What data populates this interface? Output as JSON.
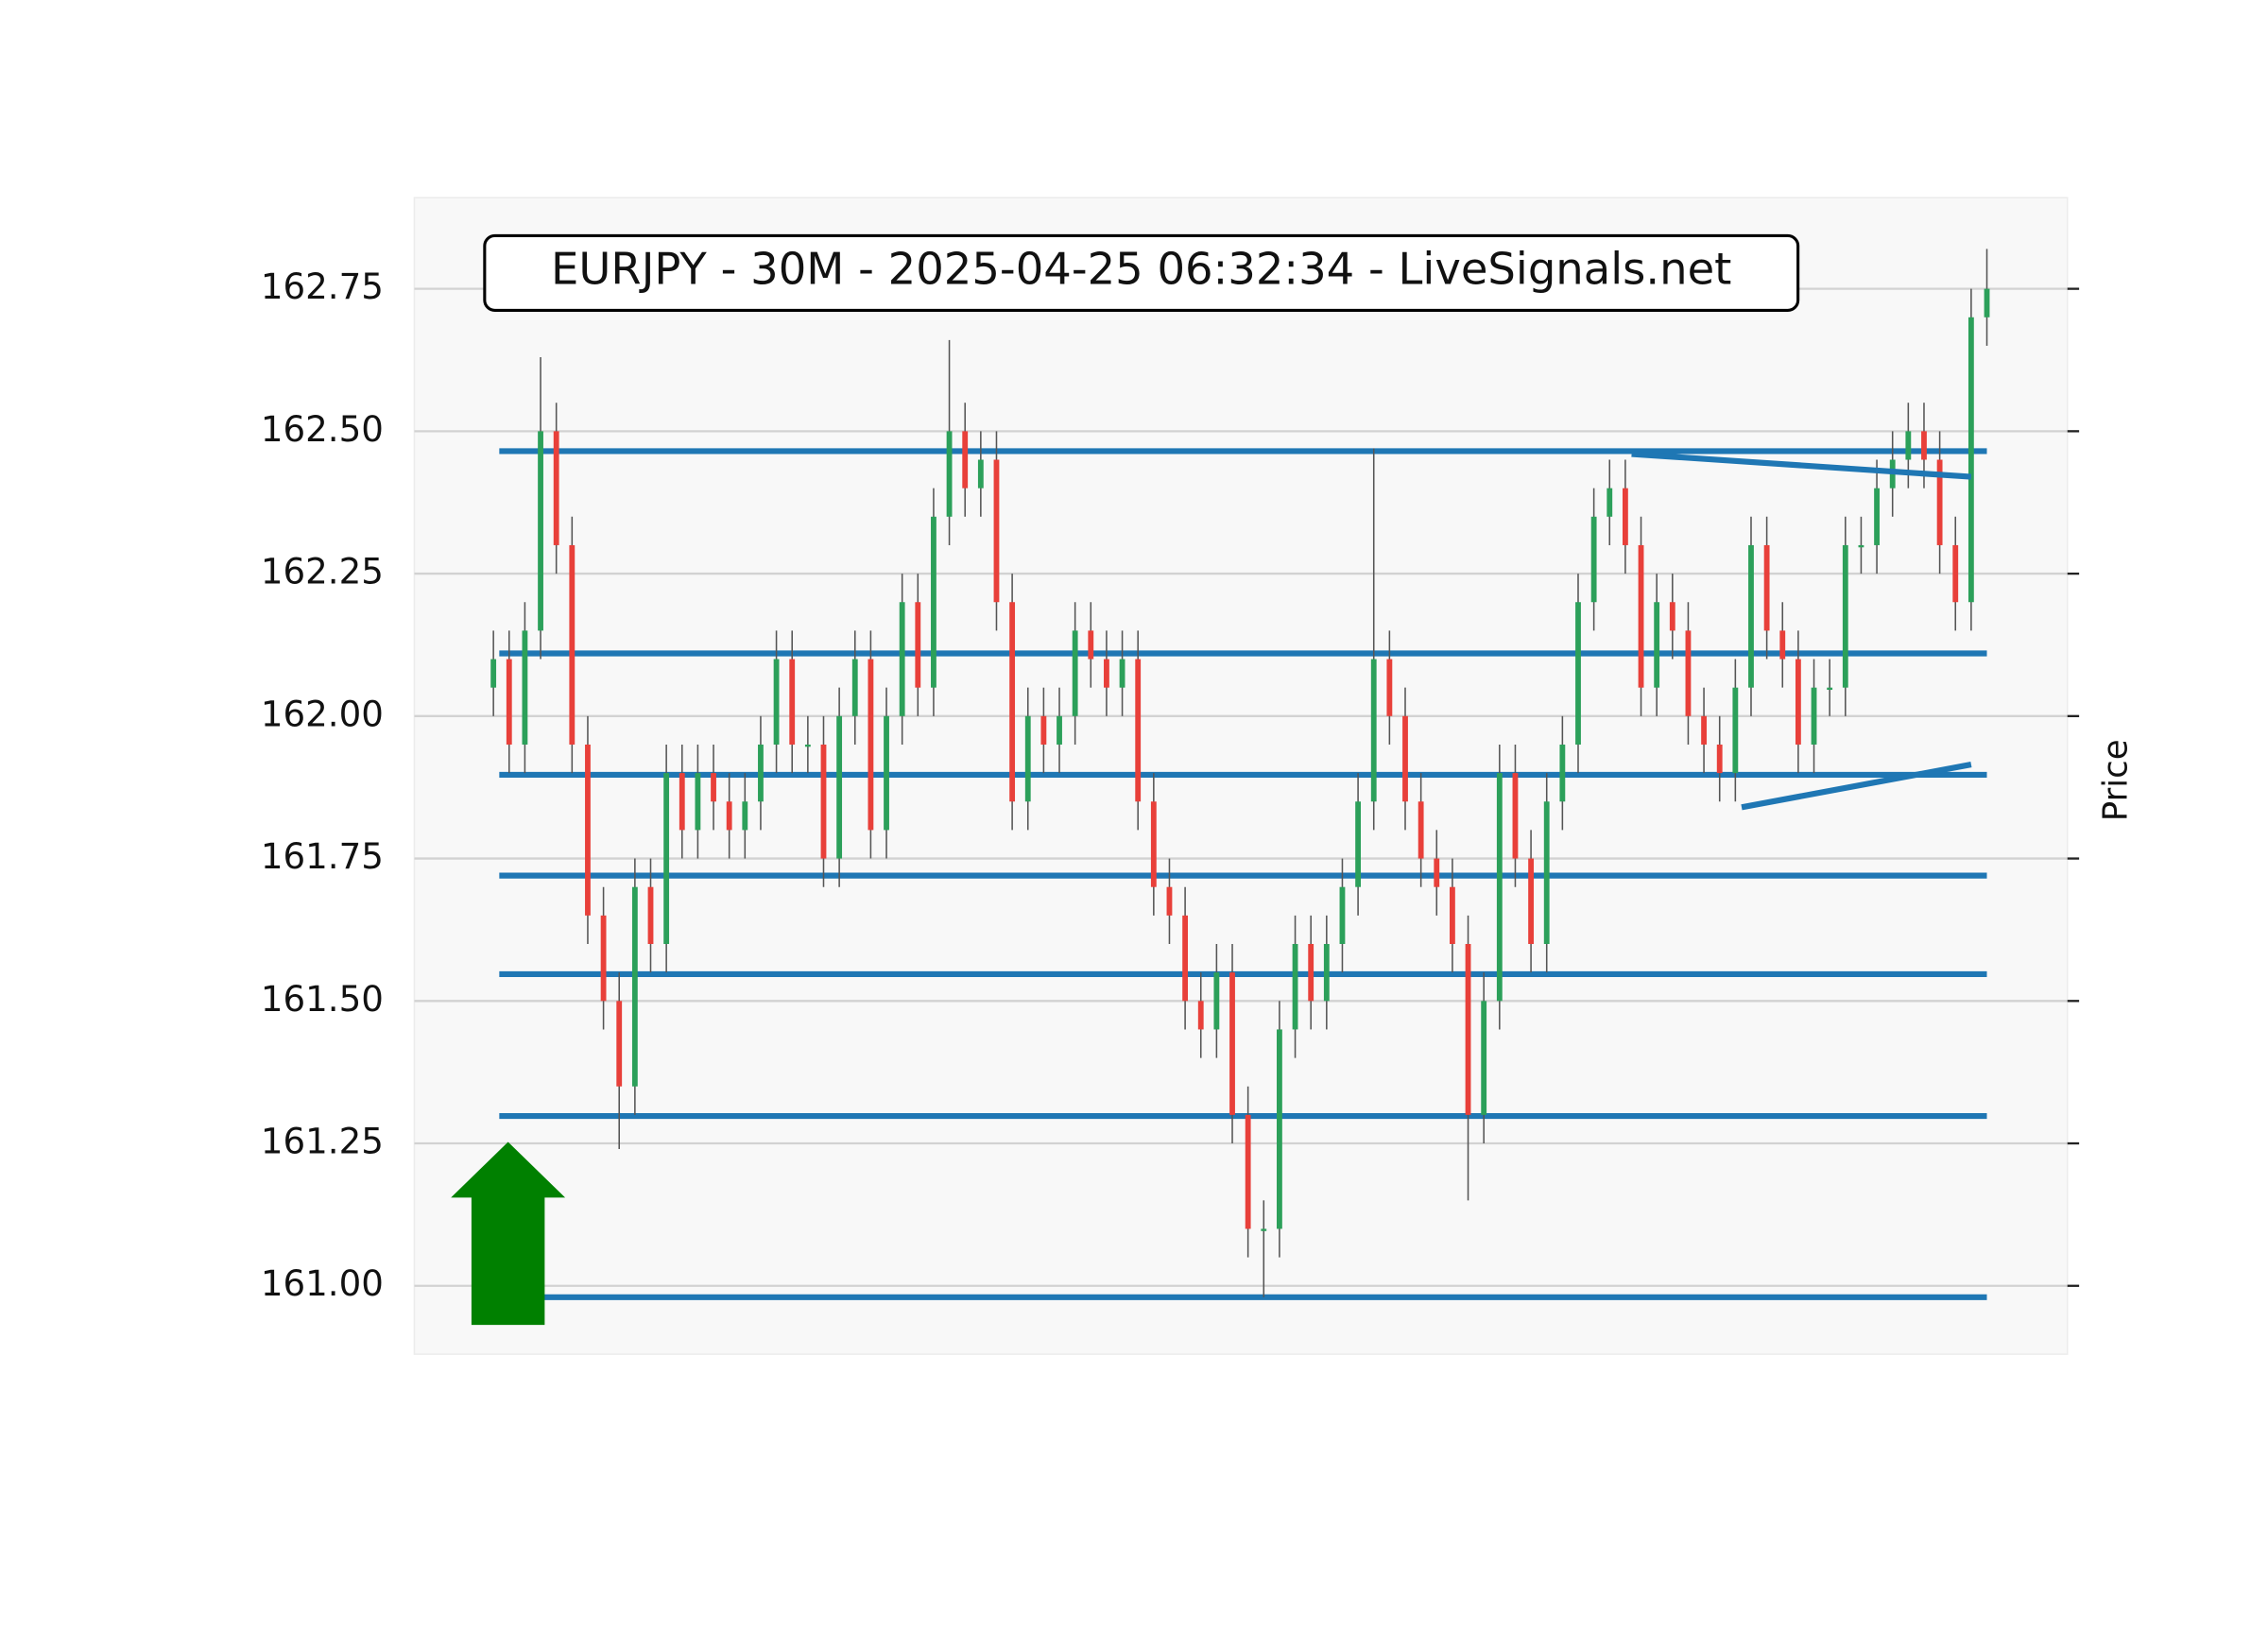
{
  "chart_data": {
    "type": "candlestick",
    "title": "EURJPY - 30M - 2025-04-25 06:32:34 - LiveSignals.net",
    "y_label": "Price",
    "ylim": [
      160.88,
      162.91
    ],
    "yticks": [
      {
        "value": 161.0,
        "label": "161.00"
      },
      161.25,
      {
        "value": 161.5,
        "label": "161.50"
      },
      161.75,
      {
        "value": 162.0,
        "label": "162.00"
      },
      162.25,
      {
        "value": 162.5,
        "label": "162.50"
      },
      162.75
    ],
    "grid": true,
    "up_color": "#2ca05a",
    "down_color": "#e8403a",
    "line_color": "#1f77b4",
    "open": [
      162.05,
      162.1,
      161.95,
      162.15,
      162.5,
      162.3,
      161.95,
      161.65,
      161.5,
      161.35,
      161.7,
      161.6,
      161.9,
      161.8,
      161.9,
      161.85,
      161.8,
      161.85,
      161.95,
      162.1,
      161.95,
      161.95,
      161.75,
      162.0,
      162.1,
      161.8,
      162.0,
      162.2,
      162.05,
      162.35,
      162.5,
      162.4,
      162.45,
      162.2,
      161.85,
      162.0,
      161.95,
      162.0,
      162.15,
      162.1,
      162.05,
      162.1,
      161.85,
      161.7,
      161.65,
      161.5,
      161.45,
      161.55,
      161.3,
      161.1,
      161.1,
      161.45,
      161.6,
      161.5,
      161.6,
      161.7,
      161.85,
      162.1,
      162.0,
      161.85,
      161.75,
      161.7,
      161.6,
      161.3,
      161.5,
      161.9,
      161.75,
      161.6,
      161.85,
      161.95,
      162.2,
      162.35,
      162.4,
      162.3,
      162.05,
      162.2,
      162.15,
      162.0,
      161.95,
      161.9,
      162.05,
      162.3,
      162.15,
      162.1,
      161.95,
      162.05,
      162.05,
      162.3,
      162.3,
      162.4,
      162.45,
      162.5,
      162.45,
      162.3,
      162.2,
      162.7
    ],
    "high": [
      162.15,
      162.15,
      162.2,
      162.63,
      162.55,
      162.35,
      162.0,
      161.7,
      161.55,
      161.75,
      161.75,
      161.95,
      161.95,
      161.95,
      161.95,
      161.9,
      161.9,
      162.0,
      162.15,
      162.15,
      162.0,
      162.0,
      162.05,
      162.15,
      162.15,
      162.05,
      162.25,
      162.25,
      162.4,
      162.66,
      162.55,
      162.5,
      162.5,
      162.25,
      162.05,
      162.05,
      162.05,
      162.2,
      162.2,
      162.15,
      162.15,
      162.15,
      161.9,
      161.75,
      161.7,
      161.55,
      161.6,
      161.6,
      161.35,
      161.15,
      161.5,
      161.65,
      161.65,
      161.65,
      161.75,
      161.9,
      162.47,
      162.15,
      162.05,
      161.9,
      161.8,
      161.75,
      161.65,
      161.55,
      161.95,
      161.95,
      161.8,
      161.9,
      162.0,
      162.25,
      162.4,
      162.45,
      162.45,
      162.35,
      162.25,
      162.25,
      162.2,
      162.05,
      162.0,
      162.1,
      162.35,
      162.35,
      162.2,
      162.15,
      162.1,
      162.1,
      162.35,
      162.35,
      162.45,
      162.5,
      162.55,
      162.55,
      162.5,
      162.35,
      162.75,
      162.82
    ],
    "low": [
      162.0,
      161.9,
      161.9,
      162.1,
      162.25,
      161.9,
      161.6,
      161.45,
      161.24,
      161.3,
      161.55,
      161.55,
      161.75,
      161.75,
      161.8,
      161.75,
      161.75,
      161.8,
      161.9,
      161.9,
      161.9,
      161.7,
      161.7,
      161.95,
      161.75,
      161.75,
      161.95,
      162.0,
      162.0,
      162.3,
      162.35,
      162.35,
      162.15,
      161.8,
      161.8,
      161.9,
      161.9,
      161.95,
      162.05,
      162.0,
      162.0,
      161.8,
      161.65,
      161.6,
      161.45,
      161.4,
      161.4,
      161.25,
      161.05,
      160.98,
      161.05,
      161.4,
      161.45,
      161.45,
      161.55,
      161.65,
      161.8,
      161.95,
      161.8,
      161.7,
      161.65,
      161.55,
      161.15,
      161.25,
      161.45,
      161.7,
      161.55,
      161.55,
      161.8,
      161.9,
      162.15,
      162.3,
      162.25,
      162.0,
      162.0,
      162.1,
      161.95,
      161.9,
      161.85,
      161.85,
      162.0,
      162.1,
      162.05,
      161.9,
      161.9,
      162.0,
      162.0,
      162.25,
      162.25,
      162.35,
      162.4,
      162.4,
      162.25,
      162.15,
      162.15,
      162.65
    ],
    "close": [
      162.1,
      161.95,
      162.15,
      162.5,
      162.3,
      161.95,
      161.65,
      161.5,
      161.35,
      161.7,
      161.6,
      161.9,
      161.8,
      161.9,
      161.85,
      161.8,
      161.85,
      161.95,
      162.1,
      161.95,
      161.95,
      161.75,
      162.0,
      162.1,
      161.8,
      162.0,
      162.2,
      162.05,
      162.35,
      162.5,
      162.4,
      162.45,
      162.2,
      161.85,
      162.0,
      161.95,
      162.0,
      162.15,
      162.1,
      162.05,
      162.1,
      161.85,
      161.7,
      161.65,
      161.5,
      161.45,
      161.55,
      161.3,
      161.1,
      161.1,
      161.45,
      161.6,
      161.5,
      161.6,
      161.7,
      161.85,
      162.1,
      162.0,
      161.85,
      161.75,
      161.7,
      161.6,
      161.3,
      161.5,
      161.9,
      161.75,
      161.6,
      161.85,
      161.95,
      162.2,
      162.35,
      162.4,
      162.3,
      162.05,
      162.2,
      162.15,
      162.0,
      161.95,
      161.9,
      162.05,
      162.3,
      162.15,
      162.1,
      161.95,
      162.05,
      162.05,
      162.3,
      162.3,
      162.4,
      162.45,
      162.5,
      162.45,
      162.3,
      162.2,
      162.7,
      162.75
    ],
    "levels": [
      162.465,
      162.11,
      161.897,
      161.72,
      161.547,
      161.298,
      160.98
    ],
    "trendlines": [
      {
        "x": [
          72.4,
          94
        ],
        "y": [
          162.46,
          162.42
        ]
      },
      {
        "x": [
          79.4,
          94
        ],
        "y": [
          161.84,
          161.915
        ]
      }
    ]
  }
}
